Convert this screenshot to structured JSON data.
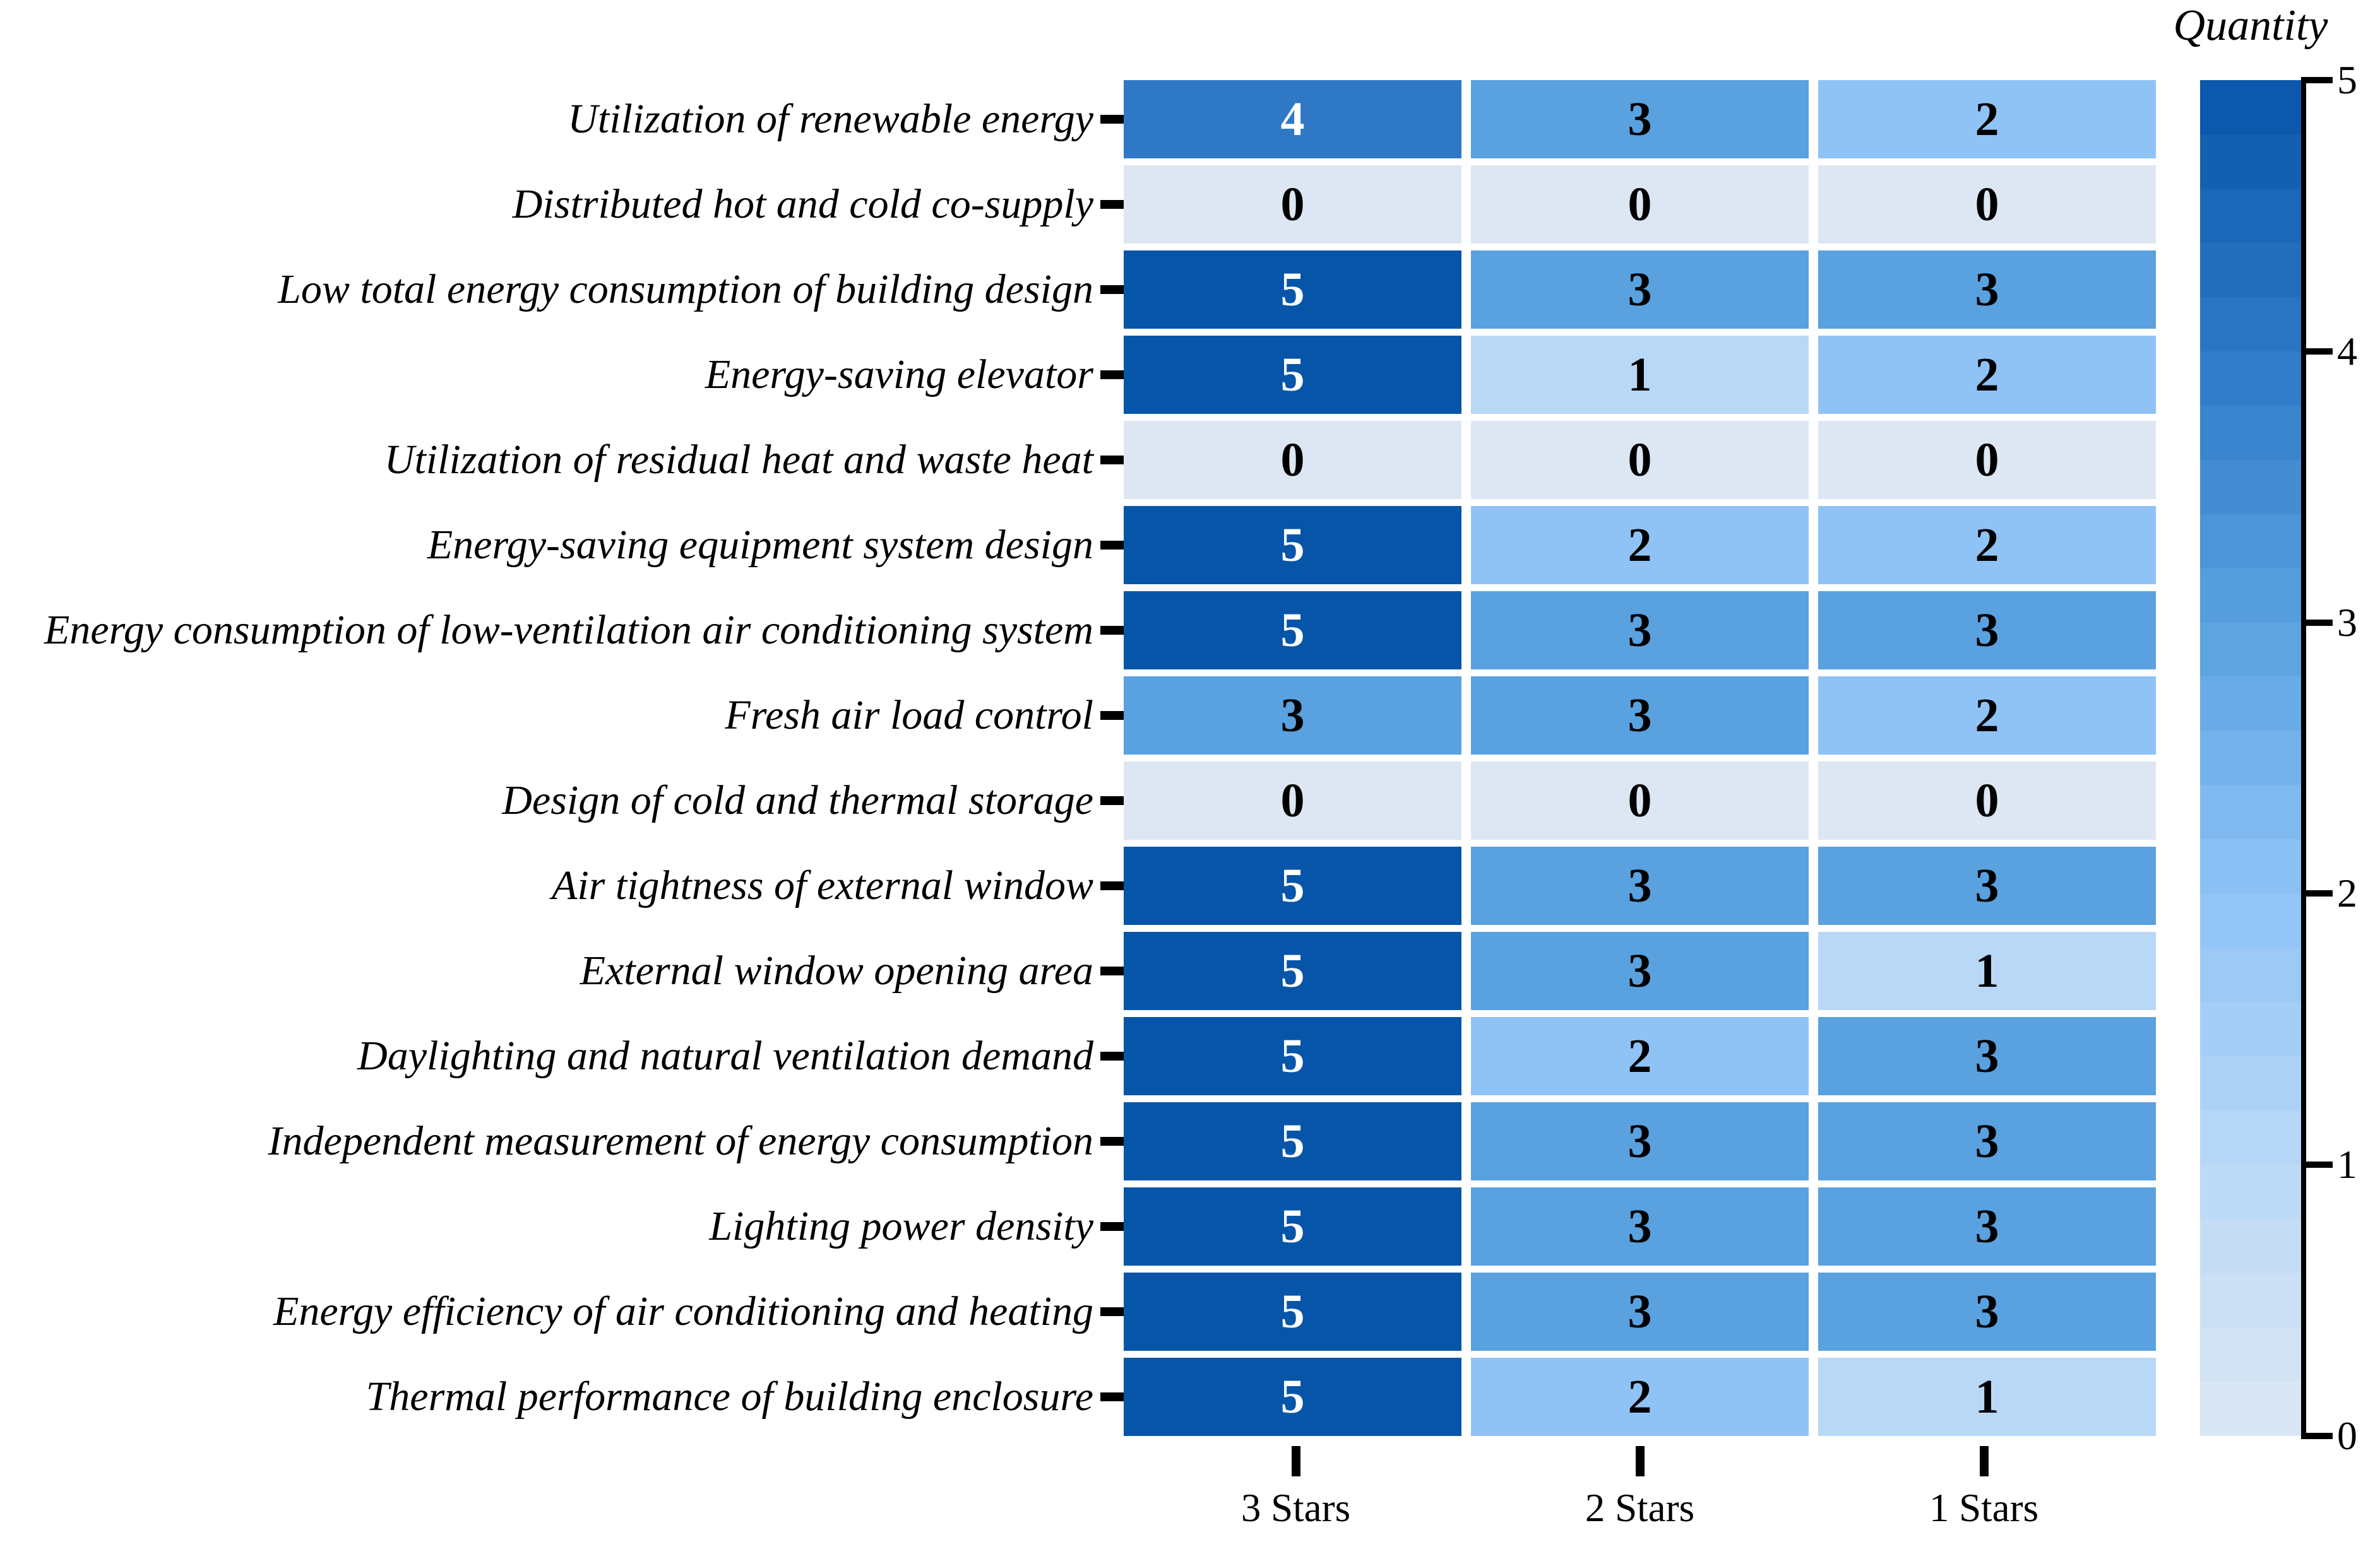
{
  "figure": {
    "type_note": "heatmap of quantity by criterion and star rating",
    "background": "#ffffff",
    "text_color": "#000000"
  },
  "colorbar": {
    "title": "Quantity",
    "tick_labels": [
      "5",
      "4",
      "3",
      "2",
      "1",
      "0"
    ],
    "range": [
      0,
      5
    ],
    "bands": 25
  },
  "columns": [
    "3 Stars",
    "2 Stars",
    "1 Stars"
  ],
  "rows": [
    {
      "label": "Utilization of renewable energy",
      "values": [
        4,
        3,
        2
      ]
    },
    {
      "label": "Distributed hot and cold co-supply",
      "values": [
        0,
        0,
        0
      ]
    },
    {
      "label": "Low total energy consumption of building design",
      "values": [
        5,
        3,
        3
      ]
    },
    {
      "label": "Energy-saving elevator",
      "values": [
        5,
        1,
        2
      ]
    },
    {
      "label": "Utilization of residual heat and waste heat",
      "values": [
        0,
        0,
        0
      ]
    },
    {
      "label": "Energy-saving equipment system design",
      "values": [
        5,
        2,
        2
      ]
    },
    {
      "label": "Energy consumption of low-ventilation air conditioning system",
      "values": [
        5,
        3,
        3
      ]
    },
    {
      "label": "Fresh air load control",
      "values": [
        3,
        3,
        2
      ]
    },
    {
      "label": "Design of cold and thermal storage",
      "values": [
        0,
        0,
        0
      ]
    },
    {
      "label": "Air tightness of external window",
      "values": [
        5,
        3,
        3
      ]
    },
    {
      "label": "External window opening area",
      "values": [
        5,
        3,
        1
      ]
    },
    {
      "label": "Daylighting and natural ventilation demand",
      "values": [
        5,
        2,
        3
      ]
    },
    {
      "label": "Independent measurement of energy consumption",
      "values": [
        5,
        3,
        3
      ]
    },
    {
      "label": "Lighting power density",
      "values": [
        5,
        3,
        3
      ]
    },
    {
      "label": "Energy efficiency of air conditioning and heating",
      "values": [
        5,
        3,
        3
      ]
    },
    {
      "label": "Thermal performance of building enclosure",
      "values": [
        5,
        2,
        1
      ]
    }
  ],
  "value_colors": {
    "0": "#dce7f3",
    "1": "#b9d8f6",
    "2": "#8fc3f6",
    "3": "#59a1df",
    "4": "#2e78c6",
    "5": "#0755a9"
  },
  "white_text_min_value": 4,
  "chart_data": {
    "type": "heatmap",
    "title": "",
    "colorbar_title": "Quantity",
    "x_categories": [
      "3 Stars",
      "2 Stars",
      "1 Stars"
    ],
    "y_categories": [
      "Utilization of renewable energy",
      "Distributed hot and cold co-supply",
      "Low total energy consumption of building design",
      "Energy-saving elevator",
      "Utilization of residual heat and waste heat",
      "Energy-saving equipment system design",
      "Energy consumption of low-ventilation air conditioning system",
      "Fresh air load control",
      "Design of cold and thermal storage",
      "Air tightness of external window",
      "External window opening area",
      "Daylighting and natural ventilation demand",
      "Independent measurement of energy consumption",
      "Lighting power density",
      "Energy efficiency of air conditioning and heating",
      "Thermal performance of building enclosure"
    ],
    "values": [
      [
        4,
        3,
        2
      ],
      [
        0,
        0,
        0
      ],
      [
        5,
        3,
        3
      ],
      [
        5,
        1,
        2
      ],
      [
        0,
        0,
        0
      ],
      [
        5,
        2,
        2
      ],
      [
        5,
        3,
        3
      ],
      [
        3,
        3,
        2
      ],
      [
        0,
        0,
        0
      ],
      [
        5,
        3,
        3
      ],
      [
        5,
        3,
        1
      ],
      [
        5,
        2,
        3
      ],
      [
        5,
        3,
        3
      ],
      [
        5,
        3,
        3
      ],
      [
        5,
        3,
        3
      ],
      [
        5,
        2,
        1
      ]
    ],
    "value_range": [
      0,
      5
    ],
    "colorscale_anchors": [
      "#dce7f3",
      "#b9d8f6",
      "#8fc3f6",
      "#59a1df",
      "#2e78c6",
      "#0755a9"
    ],
    "colorbar_ticks": [
      0,
      1,
      2,
      3,
      4,
      5
    ],
    "legend_position": "right",
    "grid": false,
    "cell_label_style": "bold serif, white when value >= 4, black otherwise"
  }
}
